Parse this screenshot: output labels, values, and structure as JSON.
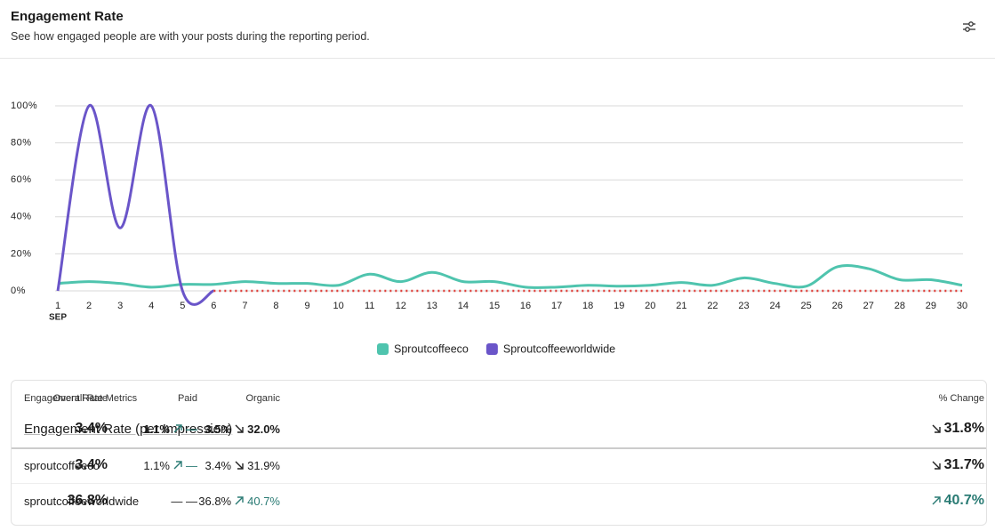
{
  "header": {
    "title": "Engagement Rate",
    "subtitle": "See how engaged people are with your posts during the reporting period."
  },
  "chart_data": {
    "type": "line",
    "x": [
      1,
      2,
      3,
      4,
      5,
      6,
      7,
      8,
      9,
      10,
      11,
      12,
      13,
      14,
      15,
      16,
      17,
      18,
      19,
      20,
      21,
      22,
      23,
      24,
      25,
      26,
      27,
      28,
      29,
      30
    ],
    "x_period_label": "SEP",
    "xlim": [
      1,
      30
    ],
    "xticks": [
      1,
      2,
      3,
      4,
      5,
      6,
      7,
      8,
      9,
      10,
      11,
      12,
      13,
      14,
      15,
      16,
      17,
      18,
      19,
      20,
      21,
      22,
      23,
      24,
      25,
      26,
      27,
      28,
      29,
      30
    ],
    "ylim": [
      0,
      100
    ],
    "yticks": [
      {
        "value": 0,
        "label": "0%"
      },
      {
        "value": 20,
        "label": "20%"
      },
      {
        "value": 40,
        "label": "40%"
      },
      {
        "value": 60,
        "label": "60%"
      },
      {
        "value": 80,
        "label": "80%"
      },
      {
        "value": 100,
        "label": "100%"
      }
    ],
    "grid": true,
    "series": [
      {
        "name": "Sproutcoffeeco",
        "color": "#4fc4ae",
        "values": [
          4,
          5,
          4,
          2,
          3.5,
          3.5,
          5,
          4,
          4,
          3,
          9,
          5,
          10,
          5,
          5,
          2,
          2,
          3,
          2.5,
          3,
          4.5,
          3,
          7,
          4,
          2.5,
          13,
          12,
          6,
          6,
          3
        ]
      },
      {
        "name": "Sproutcoffeeworldwide",
        "color": "#6a55c9",
        "values": [
          0,
          100,
          34,
          100,
          0,
          0,
          null,
          null,
          null,
          null,
          null,
          null,
          null,
          null,
          null,
          null,
          null,
          null,
          null,
          null,
          null,
          null,
          null,
          null,
          null,
          null,
          null,
          null,
          null,
          null
        ]
      }
    ]
  },
  "table": {
    "columns": [
      "Engagement Rate Metrics",
      "Organic",
      "Paid",
      "Overall Rate",
      "% Change"
    ],
    "rows": [
      {
        "name": "Engagement Rate (per Impression)",
        "organic": "3.5%",
        "organic_change": {
          "text": "32.0%",
          "direction": "down"
        },
        "paid": "1.1%",
        "paid_change": {
          "text": "—",
          "direction": "up"
        },
        "overall": "3.4%",
        "change": {
          "text": "31.8%",
          "direction": "down"
        }
      },
      {
        "name": "sproutcoffeeco",
        "organic": "3.4%",
        "organic_change": {
          "text": "31.9%",
          "direction": "down"
        },
        "paid": "1.1%",
        "paid_change": {
          "text": "—",
          "direction": "up"
        },
        "overall": "3.4%",
        "change": {
          "text": "31.7%",
          "direction": "down"
        }
      },
      {
        "name": "sproutcoffeeworldwide",
        "organic": "36.8%",
        "organic_change": {
          "text": "40.7%",
          "direction": "up"
        },
        "paid": "— —",
        "overall": "36.8%",
        "change": {
          "text": "40.7%",
          "direction": "up"
        }
      }
    ]
  }
}
